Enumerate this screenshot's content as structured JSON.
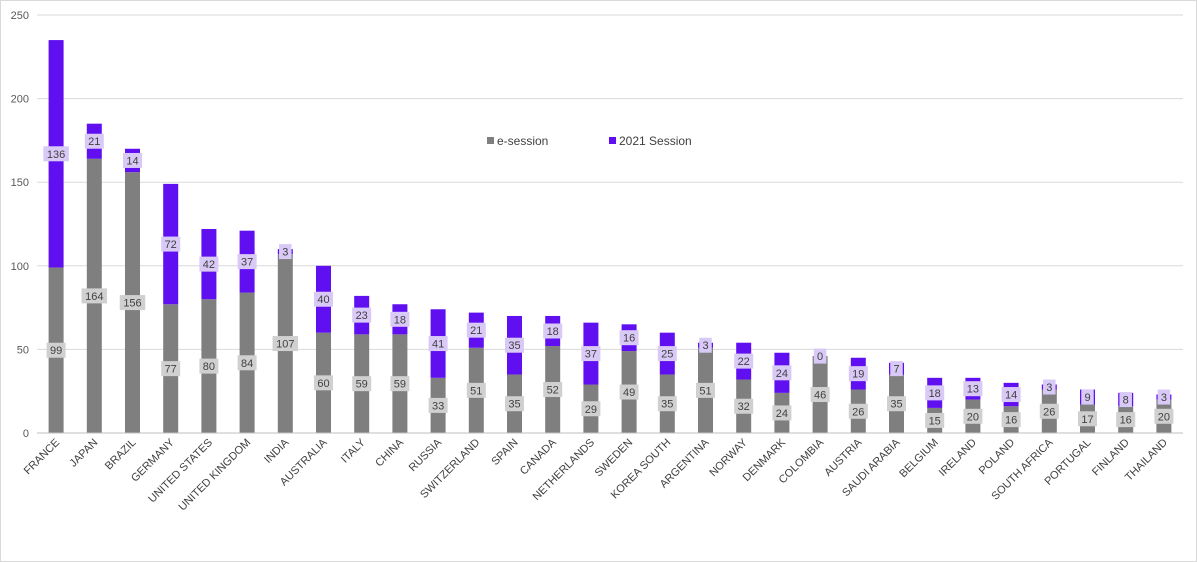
{
  "chart_data": {
    "type": "bar",
    "stacked": true,
    "title": "",
    "xlabel": "",
    "ylabel": "",
    "ylim": [
      0,
      250
    ],
    "yticks": [
      0,
      50,
      100,
      150,
      200,
      250
    ],
    "grid": true,
    "legend_position": "center-top",
    "colors": {
      "e-session": "#7f7f7f",
      "2021 Session": "#6010f0",
      "label_bg_e": "#d0d0d0",
      "label_bg_s": "#d9c9f7"
    },
    "categories": [
      "FRANCE",
      "JAPAN",
      "BRAZIL",
      "GERMANY",
      "UNITED STATES",
      "UNITED KINGDOM",
      "INDIA",
      "AUSTRALIA",
      "ITALY",
      "CHINA",
      "RUSSIA",
      "SWITZERLAND",
      "SPAIN",
      "CANADA",
      "NETHERLANDS",
      "SWEDEN",
      "KOREA SOUTH",
      "ARGENTINA",
      "NORWAY",
      "DENMARK",
      "COLOMBIA",
      "AUSTRIA",
      "SAUDI ARABIA",
      "BELGIUM",
      "IRELAND",
      "POLAND",
      "SOUTH AFRICA",
      "PORTUGAL",
      "FINLAND",
      "THAILAND"
    ],
    "series": [
      {
        "name": "e-session",
        "values": [
          99,
          164,
          156,
          77,
          80,
          84,
          107,
          60,
          59,
          59,
          33,
          51,
          35,
          52,
          29,
          49,
          35,
          51,
          32,
          24,
          46,
          26,
          35,
          15,
          20,
          16,
          26,
          17,
          16,
          20
        ]
      },
      {
        "name": "2021 Session",
        "values": [
          136,
          21,
          14,
          72,
          42,
          37,
          3,
          40,
          23,
          18,
          41,
          21,
          35,
          18,
          37,
          16,
          25,
          3,
          22,
          24,
          0,
          19,
          7,
          18,
          13,
          14,
          3,
          9,
          8,
          3
        ]
      }
    ]
  }
}
